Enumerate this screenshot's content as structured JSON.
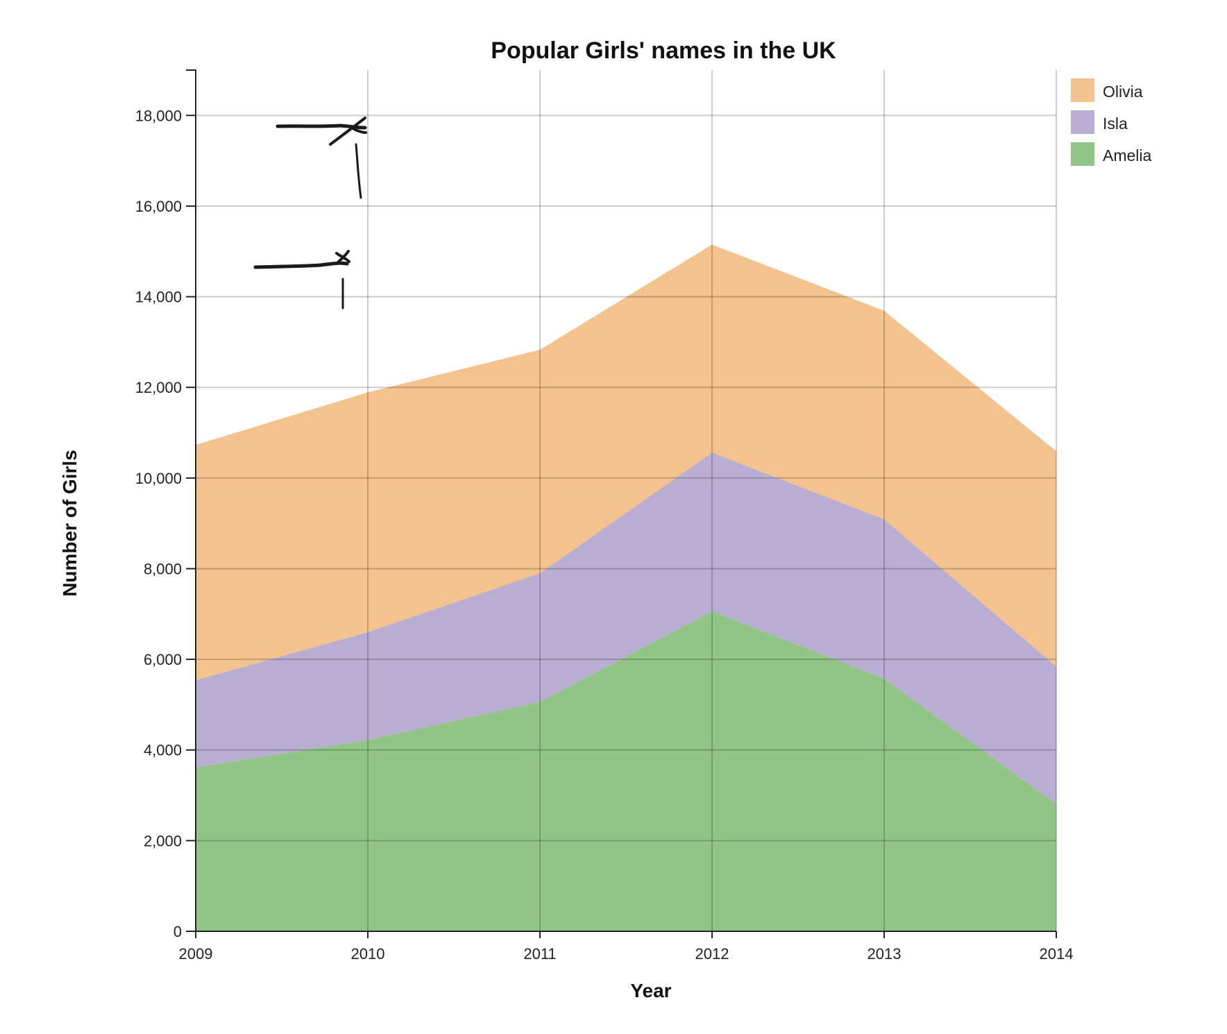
{
  "chart_data": {
    "type": "area",
    "stacked": true,
    "title": "Popular Girls' names in the UK",
    "xlabel": "Year",
    "ylabel": "Number of Girls",
    "x": [
      "2009",
      "2010",
      "2011",
      "2012",
      "2013",
      "2014"
    ],
    "ylim": [
      0,
      19000
    ],
    "yticks": [
      0,
      2000,
      4000,
      6000,
      8000,
      10000,
      12000,
      14000,
      16000,
      18000
    ],
    "ytick_labels": [
      "0",
      "2,000",
      "4,000",
      "6,000",
      "8,000",
      "10,000",
      "12,000",
      "14,000",
      "16,000",
      "18,000"
    ],
    "grid": true,
    "legend_position": "top-right",
    "series": [
      {
        "name": "Amelia",
        "color": "#90c586",
        "values": [
          3620,
          4220,
          5060,
          7060,
          5570,
          2810
        ]
      },
      {
        "name": "Isla",
        "color": "#b9aed1",
        "values": [
          1920,
          2380,
          2840,
          3500,
          3520,
          3030
        ]
      },
      {
        "name": "Olivia",
        "color": "#f3c28d",
        "values": [
          5190,
          5290,
          4930,
          4590,
          4600,
          4750
        ]
      }
    ],
    "legend_order": [
      "Olivia",
      "Isla",
      "Amelia"
    ]
  }
}
